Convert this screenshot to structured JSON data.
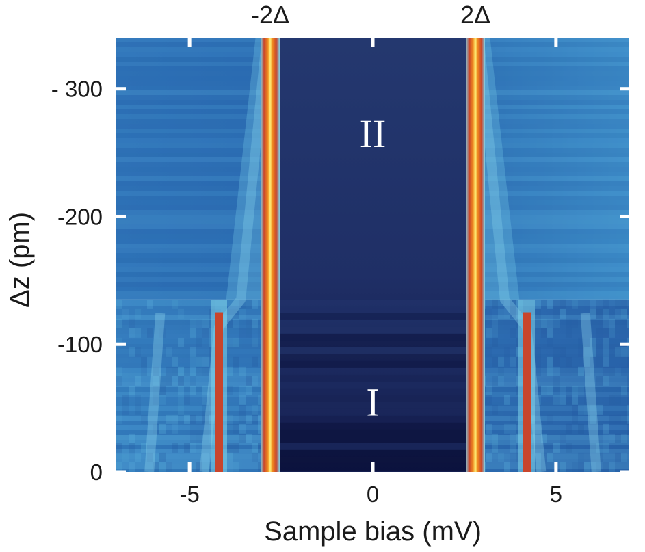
{
  "chart_data": {
    "type": "heatmap",
    "xlabel": "Sample bias (mV)",
    "ylabel": "Δz (pm)",
    "xlim": [
      -7,
      7
    ],
    "ylim": [
      0,
      -340
    ],
    "x_ticks": [
      {
        "value": -5,
        "label": "-5"
      },
      {
        "value": 0,
        "label": "0"
      },
      {
        "value": 5,
        "label": "5"
      }
    ],
    "y_ticks": [
      {
        "value": 0,
        "label": "0"
      },
      {
        "value": -100,
        "label": "-100"
      },
      {
        "value": -200,
        "label": "-200"
      },
      {
        "value": -300,
        "label": "- 300"
      }
    ],
    "top_annotations": [
      {
        "x": -2.8,
        "label": "-2Δ"
      },
      {
        "x": 2.8,
        "label": "2Δ"
      }
    ],
    "region_labels": [
      {
        "x": 0,
        "y": -265,
        "label": "II"
      },
      {
        "x": 0,
        "y": -55,
        "label": "I"
      }
    ],
    "features": [
      {
        "name": "gap edge",
        "bias_mV": [
          -2.8,
          2.8
        ],
        "z_range_pm": [
          0,
          -340
        ],
        "color": "#e25a1c"
      },
      {
        "name": "sub-gap peak",
        "bias_mV": [
          -4.2,
          4.2
        ],
        "z_range_pm": [
          0,
          -125
        ],
        "color": "#c8452c"
      },
      {
        "name": "region boundary",
        "z_pm": -135
      }
    ],
    "colors": {
      "gap": "#1d2f66",
      "gap_low": "#0d1440",
      "outside": "#2d6db5",
      "outside_light": "#4ea3d6",
      "peak_core": "#fff27a",
      "peak_mid": "#f08a1f",
      "peak_edge": "#c8452c"
    }
  }
}
